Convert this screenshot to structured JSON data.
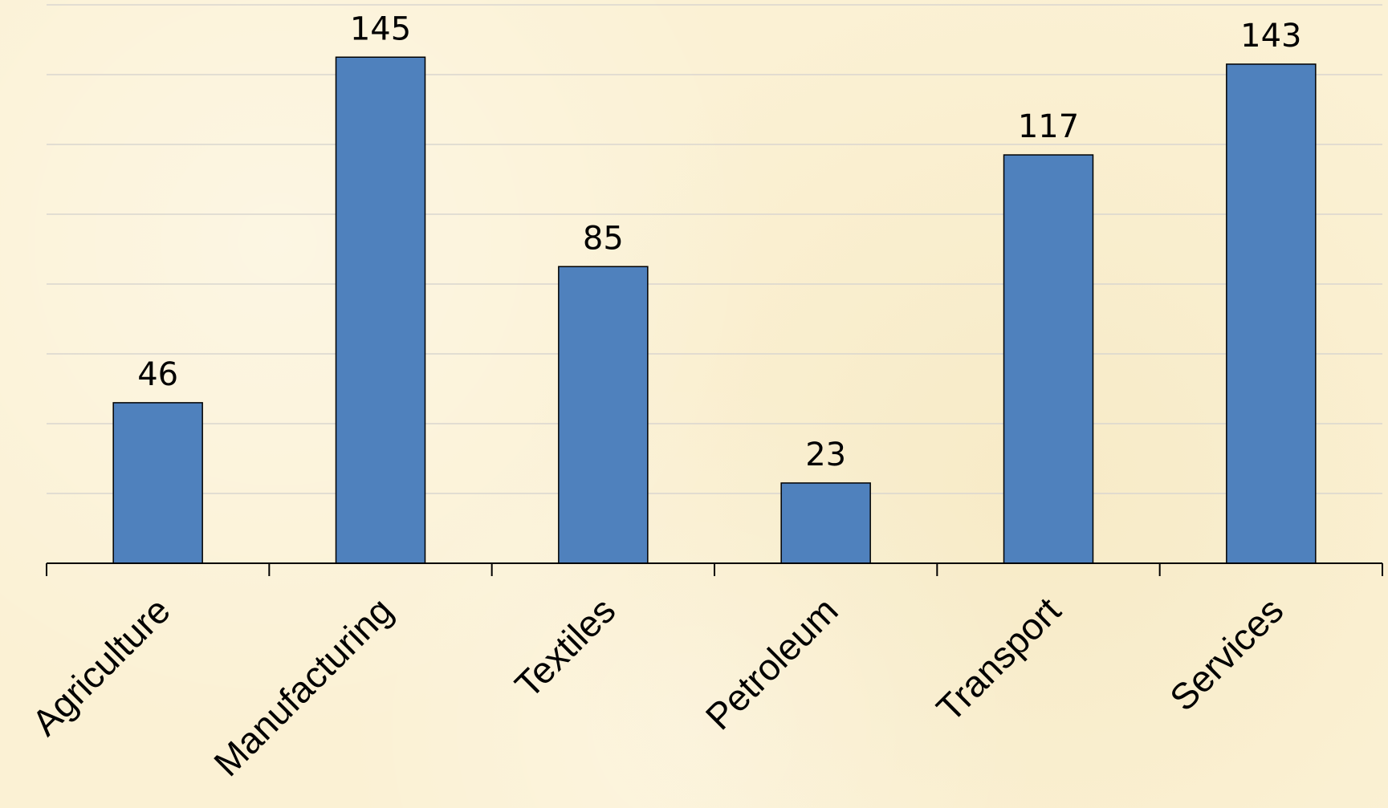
{
  "chart_data": {
    "type": "bar",
    "title": "",
    "xlabel": "",
    "ylabel": "",
    "categories": [
      "Agriculture",
      "Manufacturing",
      "Textiles",
      "Petroleum",
      "Transport",
      "Services"
    ],
    "series": [
      {
        "values": [
          46,
          145,
          85,
          23,
          117,
          143
        ]
      }
    ],
    "ylim": [
      0,
      160
    ],
    "grid_step": 20,
    "grid": true,
    "data_labels": true,
    "legend": "none",
    "colors": {
      "bar": "#4f81bd",
      "background": "#fbf1d4",
      "gridline": "#d9d6cf",
      "axis": "#000000"
    }
  }
}
